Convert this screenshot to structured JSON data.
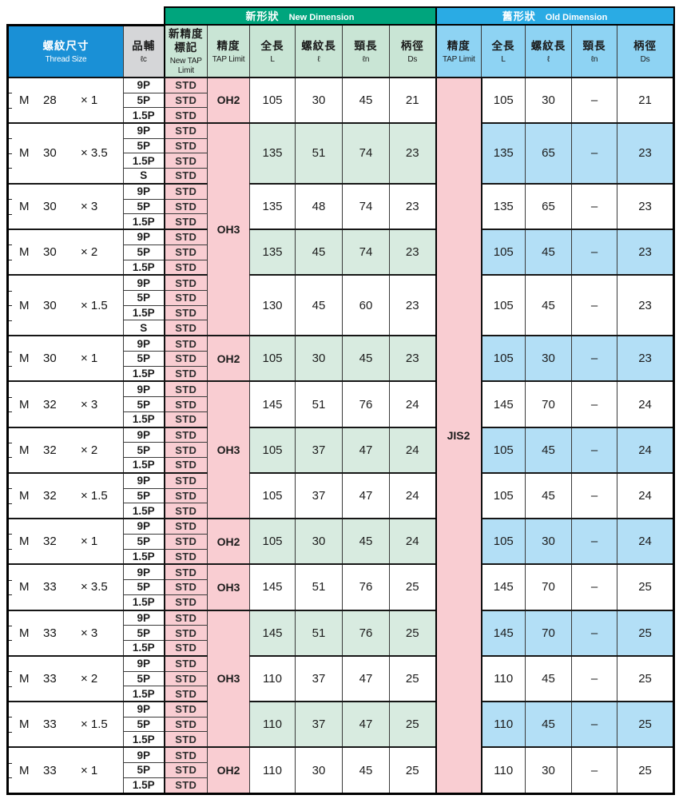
{
  "header": {
    "new_group": {
      "zh": "新形狀",
      "en": "New Dimension"
    },
    "old_group": {
      "zh": "舊形狀",
      "en": "Old Dimension"
    },
    "columns": [
      {
        "zh": "螺紋尺寸",
        "en": "Thread Size"
      },
      {
        "zh": "品輔",
        "en": "ℓc"
      },
      {
        "zh": "新精度標記",
        "en": "New TAP Limit"
      },
      {
        "zh": "精度",
        "en": "TAP Limit"
      },
      {
        "zh": "全長",
        "en": "L"
      },
      {
        "zh": "螺紋長",
        "en": "ℓ"
      },
      {
        "zh": "頸長",
        "en": "ℓn"
      },
      {
        "zh": "柄徑",
        "en": "Ds"
      },
      {
        "zh": "精度",
        "en": "TAP Limit"
      },
      {
        "zh": "全長",
        "en": "L"
      },
      {
        "zh": "螺紋長",
        "en": "ℓ"
      },
      {
        "zh": "頸長",
        "en": "ℓn"
      },
      {
        "zh": "柄徑",
        "en": "Ds"
      }
    ]
  },
  "old_tap_limit": "JIS2",
  "blocks": [
    {
      "thread": {
        "series": "M",
        "size": "28",
        "pitch": "× 1"
      },
      "shaded": false,
      "chamfers": [
        "9P",
        "5P",
        "1.5P"
      ],
      "marks": [
        "STD",
        "STD",
        "STD"
      ],
      "new": {
        "L": "105",
        "l": "30",
        "ln": "45",
        "Ds": "21"
      },
      "old": {
        "L": "105",
        "l": "30",
        "ln": "–",
        "Ds": "21"
      }
    },
    {
      "thread": {
        "series": "M",
        "size": "30",
        "pitch": "× 3.5"
      },
      "shaded": true,
      "chamfers": [
        "9P",
        "5P",
        "1.5P",
        "S"
      ],
      "marks": [
        "STD",
        "STD",
        "STD",
        "STD"
      ],
      "new": {
        "L": "135",
        "l": "51",
        "ln": "74",
        "Ds": "23"
      },
      "old": {
        "L": "135",
        "l": "65",
        "ln": "–",
        "Ds": "23"
      }
    },
    {
      "thread": {
        "series": "M",
        "size": "30",
        "pitch": "× 3"
      },
      "shaded": false,
      "chamfers": [
        "9P",
        "5P",
        "1.5P"
      ],
      "marks": [
        "STD",
        "STD",
        "STD"
      ],
      "new": {
        "L": "135",
        "l": "48",
        "ln": "74",
        "Ds": "23"
      },
      "old": {
        "L": "135",
        "l": "65",
        "ln": "–",
        "Ds": "23"
      }
    },
    {
      "thread": {
        "series": "M",
        "size": "30",
        "pitch": "× 2"
      },
      "shaded": true,
      "chamfers": [
        "9P",
        "5P",
        "1.5P"
      ],
      "marks": [
        "STD",
        "STD",
        "STD"
      ],
      "new": {
        "L": "135",
        "l": "45",
        "ln": "74",
        "Ds": "23"
      },
      "old": {
        "L": "105",
        "l": "45",
        "ln": "–",
        "Ds": "23"
      }
    },
    {
      "thread": {
        "series": "M",
        "size": "30",
        "pitch": "× 1.5"
      },
      "shaded": false,
      "chamfers": [
        "9P",
        "5P",
        "1.5P",
        "S"
      ],
      "marks": [
        "STD",
        "STD",
        "STD",
        "STD"
      ],
      "new": {
        "L": "130",
        "l": "45",
        "ln": "60",
        "Ds": "23"
      },
      "old": {
        "L": "105",
        "l": "45",
        "ln": "–",
        "Ds": "23"
      }
    },
    {
      "thread": {
        "series": "M",
        "size": "30",
        "pitch": "× 1"
      },
      "shaded": true,
      "chamfers": [
        "9P",
        "5P",
        "1.5P"
      ],
      "marks": [
        "STD",
        "STD",
        "STD"
      ],
      "new": {
        "L": "105",
        "l": "30",
        "ln": "45",
        "Ds": "23"
      },
      "old": {
        "L": "105",
        "l": "30",
        "ln": "–",
        "Ds": "23"
      }
    },
    {
      "thread": {
        "series": "M",
        "size": "32",
        "pitch": "× 3"
      },
      "shaded": false,
      "chamfers": [
        "9P",
        "5P",
        "1.5P"
      ],
      "marks": [
        "STD",
        "STD",
        "STD"
      ],
      "new": {
        "L": "145",
        "l": "51",
        "ln": "76",
        "Ds": "24"
      },
      "old": {
        "L": "145",
        "l": "70",
        "ln": "–",
        "Ds": "24"
      }
    },
    {
      "thread": {
        "series": "M",
        "size": "32",
        "pitch": "× 2"
      },
      "shaded": true,
      "chamfers": [
        "9P",
        "5P",
        "1.5P"
      ],
      "marks": [
        "STD",
        "STD",
        "STD"
      ],
      "new": {
        "L": "105",
        "l": "37",
        "ln": "47",
        "Ds": "24"
      },
      "old": {
        "L": "105",
        "l": "45",
        "ln": "–",
        "Ds": "24"
      }
    },
    {
      "thread": {
        "series": "M",
        "size": "32",
        "pitch": "× 1.5"
      },
      "shaded": false,
      "chamfers": [
        "9P",
        "5P",
        "1.5P"
      ],
      "marks": [
        "STD",
        "STD",
        "STD"
      ],
      "new": {
        "L": "105",
        "l": "37",
        "ln": "47",
        "Ds": "24"
      },
      "old": {
        "L": "105",
        "l": "45",
        "ln": "–",
        "Ds": "24"
      }
    },
    {
      "thread": {
        "series": "M",
        "size": "32",
        "pitch": "× 1"
      },
      "shaded": true,
      "chamfers": [
        "9P",
        "5P",
        "1.5P"
      ],
      "marks": [
        "STD",
        "STD",
        "STD"
      ],
      "new": {
        "L": "105",
        "l": "30",
        "ln": "45",
        "Ds": "24"
      },
      "old": {
        "L": "105",
        "l": "30",
        "ln": "–",
        "Ds": "24"
      }
    },
    {
      "thread": {
        "series": "M",
        "size": "33",
        "pitch": "× 3.5"
      },
      "shaded": false,
      "chamfers": [
        "9P",
        "5P",
        "1.5P"
      ],
      "marks": [
        "STD",
        "STD",
        "STD"
      ],
      "new": {
        "L": "145",
        "l": "51",
        "ln": "76",
        "Ds": "25"
      },
      "old": {
        "L": "145",
        "l": "70",
        "ln": "–",
        "Ds": "25"
      }
    },
    {
      "thread": {
        "series": "M",
        "size": "33",
        "pitch": "× 3"
      },
      "shaded": true,
      "chamfers": [
        "9P",
        "5P",
        "1.5P"
      ],
      "marks": [
        "STD",
        "STD",
        "STD"
      ],
      "new": {
        "L": "145",
        "l": "51",
        "ln": "76",
        "Ds": "25"
      },
      "old": {
        "L": "145",
        "l": "70",
        "ln": "–",
        "Ds": "25"
      }
    },
    {
      "thread": {
        "series": "M",
        "size": "33",
        "pitch": "× 2"
      },
      "shaded": false,
      "chamfers": [
        "9P",
        "5P",
        "1.5P"
      ],
      "marks": [
        "STD",
        "STD",
        "STD"
      ],
      "new": {
        "L": "110",
        "l": "37",
        "ln": "47",
        "Ds": "25"
      },
      "old": {
        "L": "110",
        "l": "45",
        "ln": "–",
        "Ds": "25"
      }
    },
    {
      "thread": {
        "series": "M",
        "size": "33",
        "pitch": "× 1.5"
      },
      "shaded": true,
      "chamfers": [
        "9P",
        "5P",
        "1.5P"
      ],
      "marks": [
        "STD",
        "STD",
        "STD"
      ],
      "new": {
        "L": "110",
        "l": "37",
        "ln": "47",
        "Ds": "25"
      },
      "old": {
        "L": "110",
        "l": "45",
        "ln": "–",
        "Ds": "25"
      }
    },
    {
      "thread": {
        "series": "M",
        "size": "33",
        "pitch": "× 1"
      },
      "shaded": false,
      "chamfers": [
        "9P",
        "5P",
        "1.5P"
      ],
      "marks": [
        "STD",
        "STD",
        "STD"
      ],
      "new": {
        "L": "110",
        "l": "30",
        "ln": "45",
        "Ds": "25"
      },
      "old": {
        "L": "110",
        "l": "30",
        "ln": "–",
        "Ds": "25"
      }
    }
  ],
  "oh_spans": [
    {
      "label": "OH2",
      "start_block": 0,
      "blocks": 1
    },
    {
      "label": "OH3",
      "start_block": 1,
      "blocks": 4
    },
    {
      "label": "OH2",
      "start_block": 5,
      "blocks": 1
    },
    {
      "label": "OH3",
      "start_block": 6,
      "blocks": 3
    },
    {
      "label": "OH2",
      "start_block": 9,
      "blocks": 1
    },
    {
      "label": "OH3",
      "start_block": 10,
      "blocks": 1
    },
    {
      "label": "OH3",
      "start_block": 11,
      "blocks": 3
    },
    {
      "label": "OH2",
      "start_block": 14,
      "blocks": 1
    }
  ],
  "colors": {
    "new_group_header": "#00a57d",
    "old_group_header": "#2aabe4",
    "thread_header": "#1a90d6",
    "chamfer_header": "#d5d6d8",
    "new_col_header": "#c9e5d5",
    "old_col_header": "#8ed3f3",
    "tap_limit_fill": "#f9cdd2",
    "thread_shaded_fill": "#79b9e8",
    "new_shaded_fill": "#d8ebe0",
    "old_shaded_fill": "#b3dff6"
  }
}
